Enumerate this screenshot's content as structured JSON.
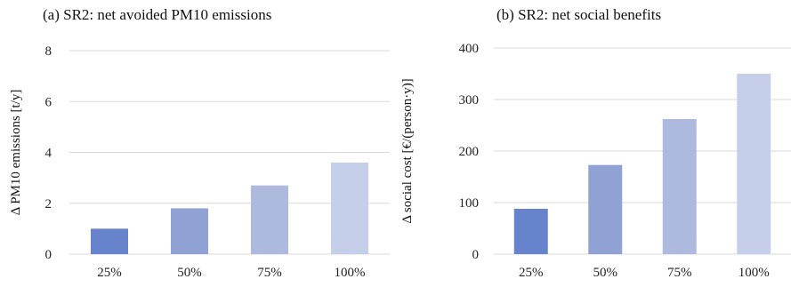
{
  "chart_data": [
    {
      "type": "bar",
      "title": "(a) SR2: net avoided PM10 emissions",
      "xlabel": "",
      "ylabel": "Δ PM10 emissions [t/y]",
      "categories": [
        "25%",
        "50%",
        "75%",
        "100%"
      ],
      "values": [
        1.0,
        1.8,
        2.7,
        3.6
      ],
      "ylim": [
        0,
        8
      ],
      "yticks": [
        0,
        2,
        4,
        6,
        8
      ],
      "grid": true,
      "colors": [
        "#6683cc",
        "#8fa2d3",
        "#adbadd",
        "#c6cfe9"
      ]
    },
    {
      "type": "bar",
      "title": "(b) SR2: net social benefits",
      "xlabel": "",
      "ylabel": "Δ social cost [€/(person·y)]",
      "categories": [
        "25%",
        "50%",
        "75%",
        "100%"
      ],
      "values": [
        88,
        173,
        262,
        350
      ],
      "ylim": [
        0,
        400
      ],
      "yticks": [
        0,
        100,
        200,
        300,
        400
      ],
      "grid": true,
      "colors": [
        "#6683cc",
        "#8fa2d3",
        "#adbadd",
        "#c6cfe9"
      ]
    }
  ]
}
